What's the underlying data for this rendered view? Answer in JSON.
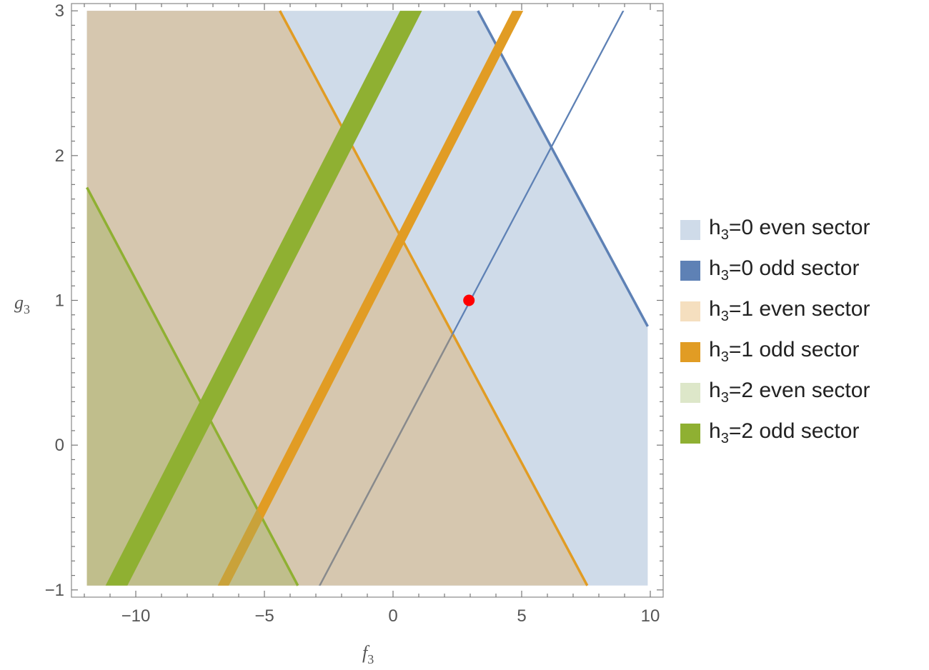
{
  "chart_data": {
    "type": "area",
    "title": "",
    "xlabel": {
      "base": "f",
      "sub": "3"
    },
    "ylabel": {
      "base": "g",
      "sub": "3"
    },
    "xlim": [
      -12.5,
      10.5
    ],
    "ylim": [
      -1.05,
      3.05
    ],
    "data_xrange": [
      -11.9,
      9.9
    ],
    "data_yrange": [
      -0.97,
      3.0
    ],
    "x_ticks": [
      -10,
      -5,
      0,
      5,
      10
    ],
    "x_tick_labels": [
      "−10",
      "−5",
      "0",
      "5",
      "10"
    ],
    "y_ticks": [
      -1,
      0,
      1,
      2,
      3
    ],
    "y_tick_labels": [
      "−1",
      "0",
      "1",
      "2",
      "3"
    ],
    "grid": false,
    "legend_position": "right",
    "series": [
      {
        "name": "h3=0 even sector",
        "label": {
          "pre": "h",
          "sub": "3",
          "post": "=0 even sector"
        },
        "kind": "region",
        "color": "#cfdbe9",
        "boundary": [
          [
            -4.4,
            3.0
          ],
          [
            3.3,
            3.0
          ],
          [
            9.9,
            0.82
          ],
          [
            9.9,
            -0.97
          ],
          [
            -11.9,
            -0.97
          ],
          [
            -11.9,
            3.0
          ]
        ]
      },
      {
        "name": "h3=0 odd sector",
        "label": {
          "pre": "h",
          "sub": "3",
          "post": "=0 odd sector"
        },
        "kind": "band",
        "color": "#5e81b5",
        "width": 0.07,
        "points": [
          [
            -2.85,
            -0.97
          ],
          [
            8.95,
            3.0
          ]
        ]
      },
      {
        "name": "h3=1 even sector",
        "label": {
          "pre": "h",
          "sub": "3",
          "post": "=1 even sector"
        },
        "kind": "region",
        "color": "#f5dfbf",
        "boundary": [
          [
            -11.9,
            3.0
          ],
          [
            -4.4,
            3.0
          ],
          [
            7.55,
            -0.97
          ],
          [
            -11.9,
            -0.97
          ]
        ]
      },
      {
        "name": "h3=1 odd sector",
        "label": {
          "pre": "h",
          "sub": "3",
          "post": "=1 odd sector"
        },
        "kind": "band",
        "color": "#e19c24",
        "width": 0.42,
        "points": [
          [
            -6.6,
            -0.97
          ],
          [
            4.85,
            3.0
          ]
        ]
      },
      {
        "name": "h3=2 even sector",
        "label": {
          "pre": "h",
          "sub": "3",
          "post": "=2 even sector"
        },
        "kind": "region",
        "color": "#dde7c9",
        "boundary": [
          [
            -11.9,
            1.78
          ],
          [
            -3.7,
            -0.97
          ],
          [
            -11.9,
            -0.97
          ]
        ]
      },
      {
        "name": "h3=2 odd sector",
        "label": {
          "pre": "h",
          "sub": "3",
          "post": "=2 odd sector"
        },
        "kind": "band",
        "color": "#8fb032",
        "width": 0.85,
        "points": [
          [
            -10.75,
            -0.97
          ],
          [
            0.7,
            3.0
          ]
        ]
      }
    ],
    "boundary_lines": [
      {
        "color": "#5e81b5",
        "points": [
          [
            3.3,
            3.0
          ],
          [
            9.9,
            0.82
          ]
        ]
      },
      {
        "color": "#e19c24",
        "points": [
          [
            -4.4,
            3.0
          ],
          [
            7.55,
            -0.97
          ]
        ]
      },
      {
        "color": "#8fb032",
        "points": [
          [
            -11.9,
            1.78
          ],
          [
            -3.7,
            -0.97
          ]
        ]
      }
    ],
    "overlap_colors": {
      "blue_orange_even": "#d6c7af",
      "all_even": "#c0be8c",
      "odd0_in_even1": "#8a8a8a"
    },
    "marker": {
      "x": 2.95,
      "y": 1.0,
      "color": "#ff0000"
    }
  }
}
